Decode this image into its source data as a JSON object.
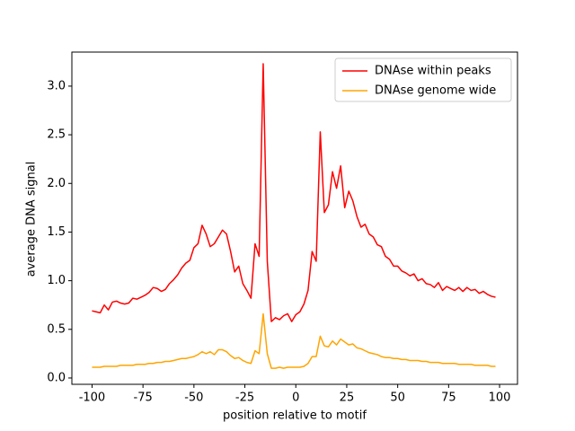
{
  "chart_data": {
    "type": "line",
    "xlabel": "position relative to motif",
    "ylabel": "average DNA signal",
    "x": [
      -100,
      -98,
      -96,
      -94,
      -92,
      -90,
      -88,
      -86,
      -84,
      -82,
      -80,
      -78,
      -76,
      -74,
      -72,
      -70,
      -68,
      -66,
      -64,
      -62,
      -60,
      -58,
      -56,
      -54,
      -52,
      -50,
      -48,
      -46,
      -44,
      -42,
      -40,
      -38,
      -36,
      -34,
      -32,
      -30,
      -28,
      -26,
      -24,
      -22,
      -20,
      -18,
      -16,
      -14,
      -12,
      -10,
      -8,
      -6,
      -4,
      -2,
      0,
      2,
      4,
      6,
      8,
      10,
      12,
      14,
      16,
      18,
      20,
      22,
      24,
      26,
      28,
      30,
      32,
      34,
      36,
      38,
      40,
      42,
      44,
      46,
      48,
      50,
      52,
      54,
      56,
      58,
      60,
      62,
      64,
      66,
      68,
      70,
      72,
      74,
      76,
      78,
      80,
      82,
      84,
      86,
      88,
      90,
      92,
      94,
      96,
      98
    ],
    "series": [
      {
        "name": "DNAse within peaks",
        "color": "#ff0000",
        "values": [
          0.69,
          0.68,
          0.67,
          0.75,
          0.7,
          0.78,
          0.79,
          0.77,
          0.76,
          0.77,
          0.82,
          0.81,
          0.83,
          0.85,
          0.88,
          0.93,
          0.92,
          0.89,
          0.91,
          0.97,
          1.01,
          1.06,
          1.13,
          1.18,
          1.21,
          1.34,
          1.38,
          1.57,
          1.48,
          1.35,
          1.38,
          1.45,
          1.52,
          1.48,
          1.3,
          1.09,
          1.15,
          0.97,
          0.9,
          0.82,
          1.38,
          1.25,
          3.23,
          1.2,
          0.58,
          0.62,
          0.6,
          0.64,
          0.66,
          0.58,
          0.65,
          0.68,
          0.76,
          0.9,
          1.3,
          1.2,
          2.53,
          1.7,
          1.78,
          2.12,
          1.95,
          2.18,
          1.75,
          1.92,
          1.82,
          1.66,
          1.55,
          1.58,
          1.48,
          1.45,
          1.37,
          1.35,
          1.25,
          1.22,
          1.15,
          1.15,
          1.1,
          1.08,
          1.05,
          1.07,
          1.0,
          1.02,
          0.97,
          0.96,
          0.93,
          0.98,
          0.9,
          0.94,
          0.92,
          0.9,
          0.93,
          0.89,
          0.93,
          0.9,
          0.91,
          0.87,
          0.89,
          0.86,
          0.84,
          0.83
        ]
      },
      {
        "name": "DNAse genome wide",
        "color": "#ffa500",
        "values": [
          0.11,
          0.11,
          0.11,
          0.12,
          0.12,
          0.12,
          0.12,
          0.13,
          0.13,
          0.13,
          0.13,
          0.14,
          0.14,
          0.14,
          0.15,
          0.15,
          0.16,
          0.16,
          0.17,
          0.17,
          0.18,
          0.19,
          0.2,
          0.2,
          0.21,
          0.22,
          0.24,
          0.27,
          0.25,
          0.27,
          0.24,
          0.29,
          0.29,
          0.27,
          0.23,
          0.2,
          0.21,
          0.18,
          0.16,
          0.15,
          0.28,
          0.25,
          0.66,
          0.25,
          0.1,
          0.1,
          0.11,
          0.1,
          0.11,
          0.11,
          0.11,
          0.11,
          0.12,
          0.15,
          0.22,
          0.22,
          0.43,
          0.33,
          0.32,
          0.38,
          0.34,
          0.4,
          0.37,
          0.34,
          0.35,
          0.31,
          0.3,
          0.28,
          0.26,
          0.25,
          0.24,
          0.22,
          0.21,
          0.21,
          0.2,
          0.2,
          0.19,
          0.19,
          0.18,
          0.18,
          0.18,
          0.17,
          0.17,
          0.16,
          0.16,
          0.16,
          0.15,
          0.15,
          0.15,
          0.15,
          0.14,
          0.14,
          0.14,
          0.14,
          0.13,
          0.13,
          0.13,
          0.13,
          0.12,
          0.12
        ]
      }
    ],
    "xlim": [
      -109.9,
      108.8
    ],
    "ylim": [
      -0.065,
      3.35
    ],
    "xticks": [
      -100,
      -75,
      -50,
      -25,
      0,
      25,
      50,
      75,
      100
    ],
    "yticks": [
      {
        "value": 0,
        "label": "0.0"
      },
      {
        "value": 0.5,
        "label": "0.5"
      },
      {
        "value": 1,
        "label": "1.0"
      },
      {
        "value": 1.5,
        "label": "1.5"
      },
      {
        "value": 2,
        "label": "2.0"
      },
      {
        "value": 2.5,
        "label": "2.5"
      },
      {
        "value": 3,
        "label": "3.0"
      }
    ],
    "legend": "upper right"
  }
}
